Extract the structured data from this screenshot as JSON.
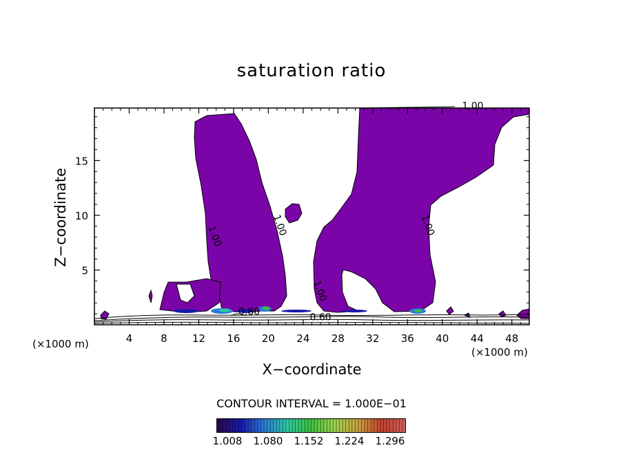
{
  "chart_data": {
    "type": "contour",
    "title": "saturation ratio",
    "xlabel": "X−coordinate",
    "ylabel": "Z−coordinate",
    "x_unit_label": "(×1000 m)",
    "z_unit_label": "(×1000 m)",
    "xlim": [
      0,
      50
    ],
    "ylim": [
      0,
      19.8
    ],
    "x_ticks": [
      4,
      8,
      12,
      16,
      20,
      24,
      28,
      32,
      36,
      40,
      44,
      48
    ],
    "y_ticks": [
      5,
      10,
      15
    ],
    "contour_interval_text": "CONTOUR INTERVAL = 1.000E−01",
    "contour_labels": [
      {
        "text": "1.00",
        "x": 13.5,
        "z": 8.0
      },
      {
        "text": "1.00",
        "x": 21.0,
        "z": 9.0
      },
      {
        "text": "1.00",
        "x": 38.0,
        "z": 9.0
      },
      {
        "text": "1.00",
        "x": 25.6,
        "z": 3.0
      },
      {
        "text": "1.00",
        "x": 43.5,
        "z": 19.7
      },
      {
        "text": "0.80",
        "x": 17.8,
        "z": 0.9
      },
      {
        "text": "0.60",
        "x": 26.0,
        "z": 0.4
      }
    ],
    "colorbar": {
      "tick_labels": [
        "1.008",
        "1.080",
        "1.152",
        "1.224",
        "1.296"
      ],
      "colors": [
        "#2a0a4a",
        "#1818a8",
        "#2a7ad8",
        "#30c8a0",
        "#40c040",
        "#a0d050",
        "#c8a040",
        "#c04030",
        "#d06060"
      ]
    },
    "fill_color_supersaturated": "#7b04a8",
    "regions": [
      {
        "name": "left plume",
        "x": [
          11.5,
          22.8
        ],
        "z": [
          0.9,
          19.3
        ]
      },
      {
        "name": "right plume",
        "x": [
          25.5,
          50.0
        ],
        "z": [
          0.9,
          19.8
        ]
      },
      {
        "name": "left low patch",
        "x": [
          6.9,
          11.8
        ],
        "z": [
          0.9,
          3.9
        ]
      },
      {
        "name": "small blob",
        "x": [
          22.2,
          24.2
        ],
        "z": [
          9.2,
          11.1
        ]
      }
    ]
  }
}
